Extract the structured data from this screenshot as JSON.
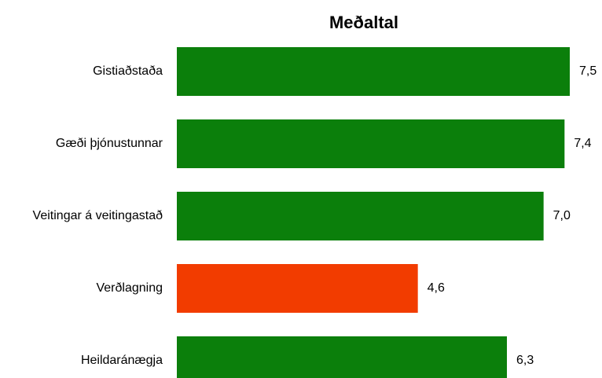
{
  "chart_data": {
    "type": "bar",
    "orientation": "horizontal",
    "title": "Meðaltal",
    "categories": [
      "Gistiaðstaða",
      "Gæði þjónustunnar",
      "Veitingar á veitingastað",
      "Verðlagning",
      "Heildaránægja"
    ],
    "values": [
      7.5,
      7.4,
      7.0,
      4.6,
      6.3
    ],
    "value_labels": [
      "7,5",
      "7,4",
      "7,0",
      "4,6",
      "6,3"
    ],
    "colors": [
      "#0b7f0b",
      "#0b7f0b",
      "#0b7f0b",
      "#f23c00",
      "#0b7f0b"
    ]
  }
}
